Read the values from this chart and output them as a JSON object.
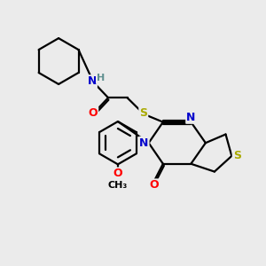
{
  "bg_color": "#ebebeb",
  "atom_colors": {
    "C": "#000000",
    "N": "#0000cc",
    "O": "#ff0000",
    "S": "#aaaa00",
    "H": "#5f8f8f"
  },
  "bond_color": "#000000",
  "bond_width": 1.6,
  "fig_width": 3.0,
  "fig_height": 3.0,
  "dpi": 100,
  "xlim": [
    0,
    10
  ],
  "ylim": [
    0,
    10
  ]
}
